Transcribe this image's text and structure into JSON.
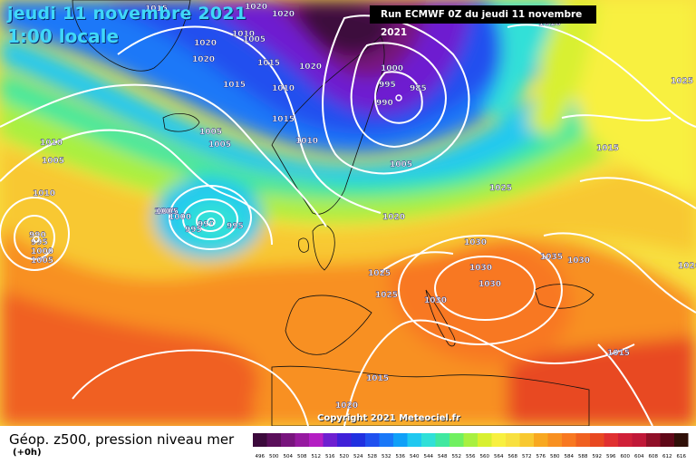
{
  "header": {
    "date": "jeudi 11 novembre 2021",
    "time": "1:00 locale",
    "run": "Run ECMWF 0Z du jeudi 11 novembre 2021"
  },
  "copyright": "Copyright 2021 Meteociel.fr",
  "footer": {
    "title": "Géop. z500, pression niveau mer",
    "subtitle": "(+0h)"
  },
  "legend": {
    "values": [
      "496",
      "500",
      "504",
      "508",
      "512",
      "516",
      "520",
      "524",
      "528",
      "532",
      "536",
      "540",
      "544",
      "548",
      "552",
      "556",
      "560",
      "564",
      "568",
      "572",
      "576",
      "580",
      "584",
      "588",
      "592",
      "596",
      "600",
      "604",
      "608",
      "612",
      "616"
    ],
    "colors": [
      "#3c0a3c",
      "#5a0f5a",
      "#78147d",
      "#9619a0",
      "#b41ec3",
      "#6e1fd0",
      "#4020d8",
      "#2030e0",
      "#2050ef",
      "#1a78f8",
      "#10a0f8",
      "#20c8f0",
      "#30e0d8",
      "#40e8a0",
      "#70f060",
      "#a8f040",
      "#d8f030",
      "#f8f040",
      "#f8e040",
      "#f8c830",
      "#f8a820",
      "#f89020",
      "#f87820",
      "#f06020",
      "#e84820",
      "#e03030",
      "#d02038",
      "#c01838",
      "#901028",
      "#600818",
      "#301008"
    ]
  },
  "isobar_labels": [
    "1020",
    "1020",
    "1010",
    "1005",
    "1020",
    "1020",
    "1015",
    "1015",
    "1020",
    "1010",
    "1015",
    "1015",
    "1005",
    "1005",
    "1010",
    "1005",
    "1000",
    "995",
    "985",
    "990",
    "1005",
    "1010",
    "1005",
    "1025",
    "1010",
    "1015",
    "1025",
    "1005",
    "1000",
    "995",
    "990",
    "995",
    "990",
    "995",
    "1000",
    "1005",
    "1010",
    "1020",
    "1030",
    "1025",
    "1025",
    "1030",
    "1030",
    "1030",
    "1035",
    "1030",
    "1020",
    "1015",
    "1015",
    "1020"
  ]
}
